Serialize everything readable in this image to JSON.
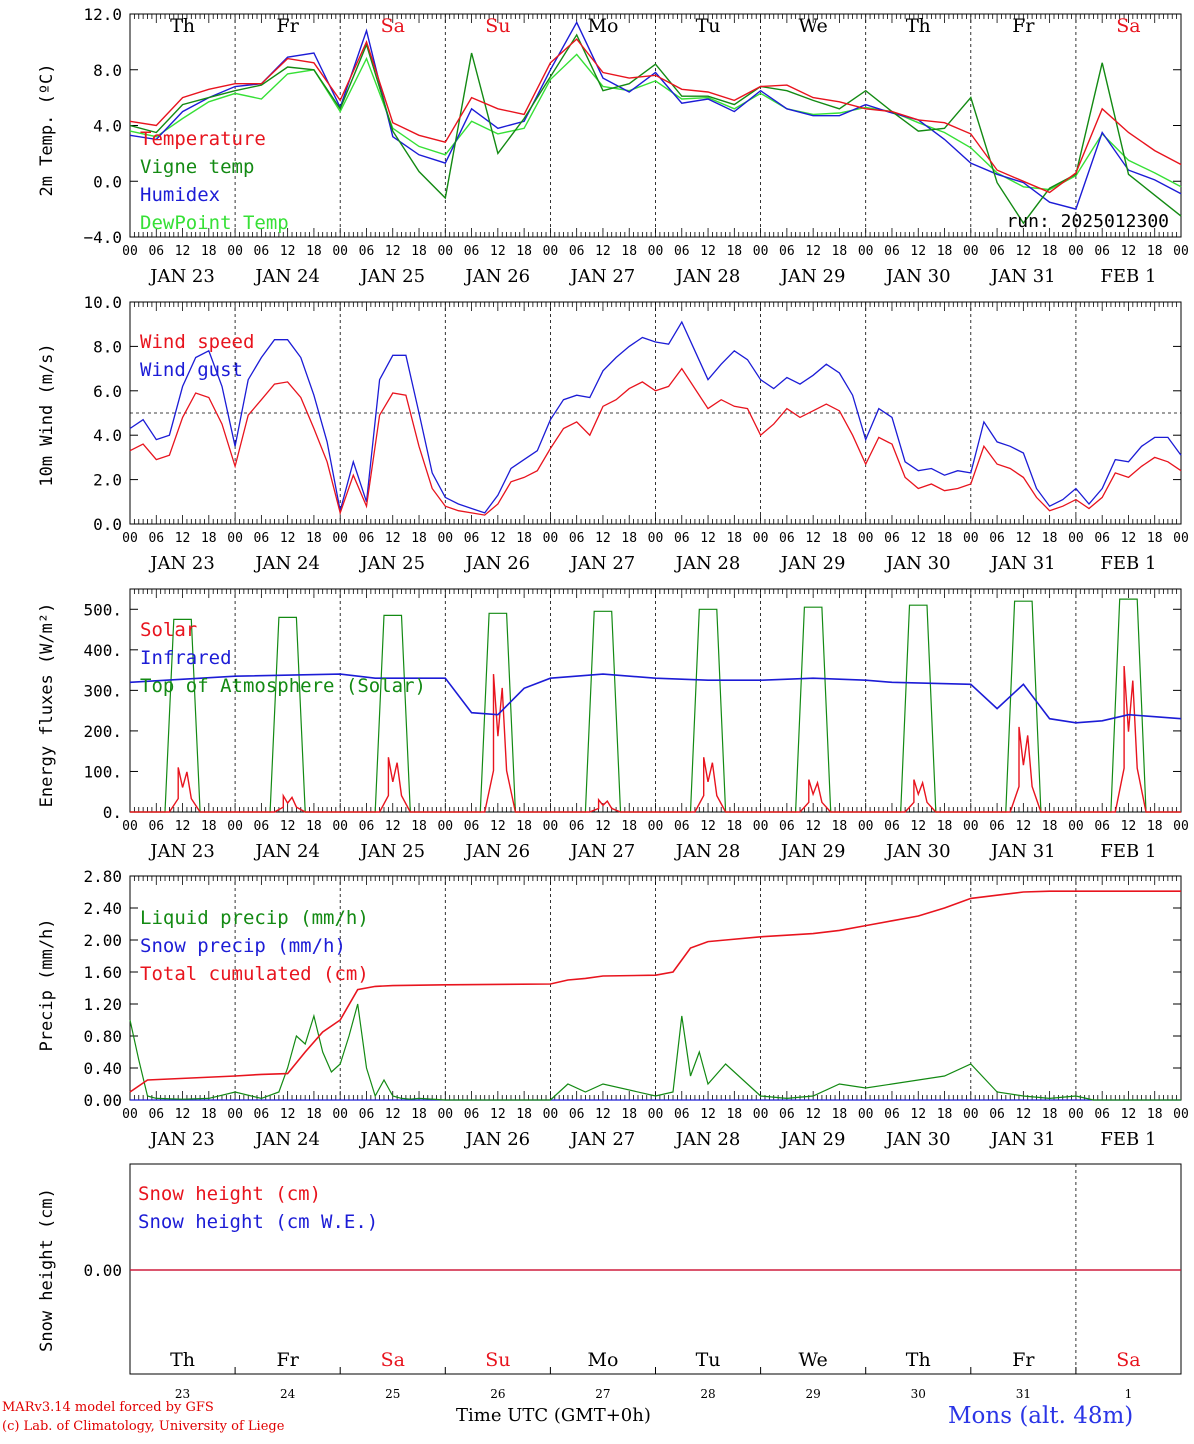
{
  "credits": {
    "line1": "MARv3.14 model forced by GFS",
    "line2": "(c) Lab. of Climatology, University of Liege"
  },
  "footer": {
    "time_label": "Time UTC (GMT+0h)",
    "station": "Mons (alt. 48m)"
  },
  "colors": {
    "red": "#e8141e",
    "blue": "#1c1cd6",
    "green": "#138a13",
    "lightgreen": "#36e036",
    "weekend": "#e8141e"
  },
  "axis": {
    "hour_ticks": [
      "00",
      "06",
      "12",
      "18"
    ],
    "day_labels": [
      "JAN 23",
      "JAN 24",
      "JAN 25",
      "JAN 26",
      "JAN 27",
      "JAN 28",
      "JAN 29",
      "JAN 30",
      "JAN 31",
      "FEB  1"
    ],
    "weekdays": [
      "Th",
      "Fr",
      "Sa",
      "Su",
      "Mo",
      "Tu",
      "We",
      "Th",
      "Fr",
      "Sa"
    ],
    "weekend_flags": [
      false,
      false,
      true,
      true,
      false,
      false,
      false,
      false,
      false,
      true
    ],
    "day_numbers": [
      "23",
      "24",
      "25",
      "26",
      "27",
      "28",
      "29",
      "30",
      "31",
      "1"
    ],
    "x_range_hours": [
      0,
      240
    ]
  },
  "chart_data": [
    {
      "type": "line",
      "ylabel": "2m Temp. (ºC)",
      "ylim": [
        -4,
        12
      ],
      "yticks": [
        "12.0",
        "8.0",
        "4.0",
        "0.0",
        "−4.0"
      ],
      "annotation": "run: 2025012300",
      "x_hours": [
        0,
        6,
        12,
        18,
        24,
        30,
        36,
        42,
        48,
        54,
        60,
        66,
        72,
        78,
        84,
        90,
        96,
        102,
        108,
        114,
        120,
        126,
        132,
        138,
        144,
        150,
        156,
        162,
        168,
        174,
        180,
        186,
        192,
        198,
        204,
        210,
        216,
        222,
        228,
        234,
        240
      ],
      "series": [
        {
          "name": "Temperature",
          "color": "red",
          "values": [
            4.3,
            4,
            6,
            6.6,
            7,
            7,
            8.8,
            8.5,
            5.8,
            10,
            4.2,
            3.3,
            2.8,
            6,
            5.2,
            4.8,
            8.5,
            10.2,
            7.8,
            7.4,
            7.6,
            6.6,
            6.4,
            5.8,
            6.8,
            6.9,
            6,
            5.7,
            5.2,
            5,
            4.4,
            4.2,
            3.4,
            0.8,
            0,
            -0.8,
            0.6,
            5.2,
            3.5,
            2.2,
            1.2
          ]
        },
        {
          "name": "Vigne temp",
          "color": "green",
          "values": [
            4,
            3.5,
            5.5,
            6,
            6.5,
            6.9,
            8.2,
            8,
            5.2,
            9.8,
            3.6,
            0.7,
            -1.2,
            9.2,
            2,
            4.5,
            7.5,
            10.5,
            6.5,
            7,
            8.4,
            6.1,
            6.1,
            5.5,
            6.8,
            6.5,
            5.8,
            5.2,
            6.5,
            5,
            3.6,
            3.8,
            6,
            -0.1,
            -3,
            -0.5,
            0.5,
            8.5,
            0.5,
            -1,
            -2.5
          ]
        },
        {
          "name": "Humidex",
          "color": "blue",
          "values": [
            3.3,
            3,
            5,
            6,
            6.8,
            7,
            8.9,
            9.2,
            5.3,
            10.8,
            3.2,
            1.9,
            1.3,
            5.2,
            3.8,
            4.3,
            8,
            11.4,
            7.4,
            6.4,
            7.8,
            5.6,
            5.9,
            5,
            6.5,
            5.2,
            4.7,
            4.7,
            5.5,
            4.9,
            4.4,
            3,
            1.3,
            0.5,
            -0.1,
            -1.5,
            -2,
            3.5,
            0.8,
            0.1,
            -0.9
          ]
        },
        {
          "name": "DewPoint Temp",
          "color": "lightgreen",
          "values": [
            3.6,
            3.2,
            4.5,
            5.7,
            6.3,
            5.9,
            7.7,
            8,
            5,
            8.8,
            3.8,
            2.5,
            1.9,
            4.3,
            3.4,
            3.8,
            7.3,
            9.1,
            6.8,
            6.5,
            7.2,
            5.9,
            6,
            5.2,
            6.3,
            5.2,
            4.8,
            4.9,
            5.3,
            5,
            4.2,
            3.5,
            2.4,
            0.6,
            -0.4,
            -0.6,
            0.4,
            3.4,
            1.5,
            0.6,
            -0.4
          ]
        }
      ]
    },
    {
      "type": "line",
      "ylabel": "10m Wind (m/s)",
      "ylim": [
        0,
        10
      ],
      "yticks": [
        "10.0",
        "8.0",
        "6.0",
        "4.0",
        "2.0",
        "0.0"
      ],
      "reference_line": 5,
      "x_hours": [
        0,
        3,
        6,
        9,
        12,
        15,
        18,
        21,
        24,
        27,
        30,
        33,
        36,
        39,
        42,
        45,
        48,
        51,
        54,
        57,
        60,
        63,
        66,
        69,
        72,
        75,
        78,
        81,
        84,
        87,
        90,
        93,
        96,
        99,
        102,
        105,
        108,
        111,
        114,
        117,
        120,
        123,
        126,
        129,
        132,
        135,
        138,
        141,
        144,
        147,
        150,
        153,
        156,
        159,
        162,
        165,
        168,
        171,
        174,
        177,
        180,
        183,
        186,
        189,
        192,
        195,
        198,
        201,
        204,
        207,
        210,
        213,
        216,
        219,
        222,
        225,
        228,
        231,
        234,
        237,
        240
      ],
      "series": [
        {
          "name": "Wind speed",
          "color": "red",
          "values": [
            3.3,
            3.6,
            2.9,
            3.1,
            4.8,
            5.9,
            5.7,
            4.5,
            2.6,
            4.9,
            5.6,
            6.3,
            6.4,
            5.7,
            4.3,
            2.8,
            0.5,
            2.2,
            0.8,
            4.9,
            5.9,
            5.8,
            3.5,
            1.6,
            0.8,
            0.6,
            0.5,
            0.4,
            0.9,
            1.9,
            2.1,
            2.4,
            3.4,
            4.3,
            4.6,
            4,
            5.3,
            5.6,
            6.1,
            6.4,
            6,
            6.2,
            7,
            6.1,
            5.2,
            5.6,
            5.3,
            5.2,
            4,
            4.5,
            5.2,
            4.8,
            5.1,
            5.4,
            5.1,
            4,
            2.7,
            3.9,
            3.6,
            2.1,
            1.6,
            1.8,
            1.5,
            1.6,
            1.8,
            3.5,
            2.7,
            2.5,
            2.1,
            1.2,
            0.6,
            0.8,
            1.1,
            0.7,
            1.2,
            2.3,
            2.1,
            2.6,
            3,
            2.8,
            2.4
          ]
        },
        {
          "name": "Wind gust",
          "color": "blue",
          "values": [
            4.3,
            4.7,
            3.8,
            4,
            6.2,
            7.5,
            7.8,
            6.2,
            3.5,
            6.5,
            7.5,
            8.3,
            8.3,
            7.5,
            5.8,
            3.7,
            0.6,
            2.8,
            1,
            6.5,
            7.6,
            7.6,
            5,
            2.3,
            1.2,
            0.9,
            0.7,
            0.5,
            1.3,
            2.5,
            2.9,
            3.3,
            4.7,
            5.6,
            5.8,
            5.7,
            6.9,
            7.5,
            8,
            8.4,
            8.2,
            8.1,
            9.1,
            7.8,
            6.5,
            7.2,
            7.8,
            7.4,
            6.5,
            6.1,
            6.6,
            6.3,
            6.7,
            7.2,
            6.8,
            5.8,
            3.8,
            5.2,
            4.8,
            2.8,
            2.4,
            2.5,
            2.2,
            2.4,
            2.3,
            4.6,
            3.7,
            3.5,
            3.2,
            1.6,
            0.8,
            1.1,
            1.6,
            0.9,
            1.6,
            2.9,
            2.8,
            3.5,
            3.9,
            3.9,
            3.1
          ]
        }
      ]
    },
    {
      "type": "line",
      "ylabel": "Energy fluxes (W/m²)",
      "ylim": [
        0,
        550
      ],
      "yticks": [
        "500.",
        "400.",
        "300.",
        "200.",
        "100.",
        "0."
      ],
      "series": [
        {
          "name": "Solar",
          "color": "red",
          "peaks": [
            110,
            40,
            135,
            340,
            30,
            135,
            80,
            80,
            210,
            360
          ]
        },
        {
          "name": "Infrared",
          "color": "blue",
          "x_hours": [
            0,
            24,
            48,
            56,
            72,
            78,
            84,
            90,
            96,
            108,
            120,
            132,
            144,
            156,
            168,
            174,
            192,
            198,
            204,
            210,
            216,
            222,
            228,
            234,
            240
          ],
          "values": [
            320,
            335,
            340,
            330,
            330,
            245,
            240,
            305,
            330,
            340,
            330,
            325,
            325,
            330,
            325,
            320,
            315,
            255,
            315,
            230,
            220,
            225,
            240,
            235,
            230
          ]
        },
        {
          "name": "Top of Atmosphere (Solar)",
          "color": "green",
          "peaks": [
            475,
            480,
            485,
            490,
            495,
            500,
            505,
            510,
            520,
            525
          ]
        }
      ]
    },
    {
      "type": "line",
      "ylabel": "Precip (mm/h)",
      "ylim": [
        0,
        2.8
      ],
      "yticks": [
        "2.80",
        "2.40",
        "2.00",
        "1.60",
        "1.20",
        "0.80",
        "0.40",
        "0.00"
      ],
      "series": [
        {
          "name": "Liquid precip (mm/h)",
          "color": "green",
          "x_hours": [
            0,
            2,
            4,
            6,
            12,
            18,
            24,
            30,
            34,
            36,
            38,
            40,
            42,
            44,
            46,
            48,
            50,
            52,
            54,
            56,
            58,
            60,
            62,
            64,
            66,
            72,
            96,
            100,
            104,
            108,
            120,
            124,
            126,
            128,
            130,
            132,
            136,
            144,
            150,
            156,
            162,
            168,
            174,
            180,
            186,
            192,
            198,
            204,
            210,
            216,
            220,
            240
          ],
          "values": [
            1.0,
            0.5,
            0.05,
            0.02,
            0.01,
            0.02,
            0.1,
            0.02,
            0.1,
            0.4,
            0.8,
            0.7,
            1.05,
            0.6,
            0.35,
            0.45,
            0.8,
            1.2,
            0.4,
            0.05,
            0.25,
            0.05,
            0.02,
            0.01,
            0.02,
            0.0,
            0.0,
            0.2,
            0.1,
            0.2,
            0.05,
            0.1,
            1.05,
            0.3,
            0.6,
            0.2,
            0.45,
            0.05,
            0.02,
            0.05,
            0.2,
            0.15,
            0.2,
            0.25,
            0.3,
            0.45,
            0.1,
            0.05,
            0.02,
            0.05,
            0.0,
            0.0
          ]
        },
        {
          "name": "Snow precip (mm/h)",
          "color": "blue",
          "x_hours": [
            0,
            240
          ],
          "values": [
            0,
            0
          ]
        },
        {
          "name": "Total cumulated (cm)",
          "color": "red",
          "x_hours": [
            0,
            4,
            24,
            30,
            36,
            40,
            44,
            48,
            52,
            56,
            60,
            72,
            96,
            100,
            104,
            108,
            120,
            124,
            128,
            132,
            136,
            144,
            150,
            156,
            162,
            168,
            174,
            180,
            186,
            192,
            198,
            204,
            210,
            216,
            222,
            228,
            234,
            240
          ],
          "values": [
            0.1,
            0.25,
            0.3,
            0.32,
            0.33,
            0.6,
            0.85,
            1.0,
            1.38,
            1.42,
            1.43,
            1.44,
            1.45,
            1.5,
            1.52,
            1.55,
            1.56,
            1.6,
            1.9,
            1.98,
            2.0,
            2.04,
            2.06,
            2.08,
            2.12,
            2.18,
            2.24,
            2.3,
            2.4,
            2.52,
            2.56,
            2.6,
            2.61,
            2.61,
            2.61,
            2.61,
            2.61,
            2.61
          ]
        }
      ]
    },
    {
      "type": "line",
      "ylabel": "Snow height (cm)",
      "yticks": [
        "0.00"
      ],
      "series": [
        {
          "name": "Snow height (cm)",
          "color": "red",
          "x_hours": [
            0,
            240
          ],
          "values": [
            0,
            0
          ]
        },
        {
          "name": "Snow height (cm W.E.)",
          "color": "blue",
          "x_hours": [
            0,
            240
          ],
          "values": [
            0,
            0
          ]
        }
      ]
    }
  ]
}
